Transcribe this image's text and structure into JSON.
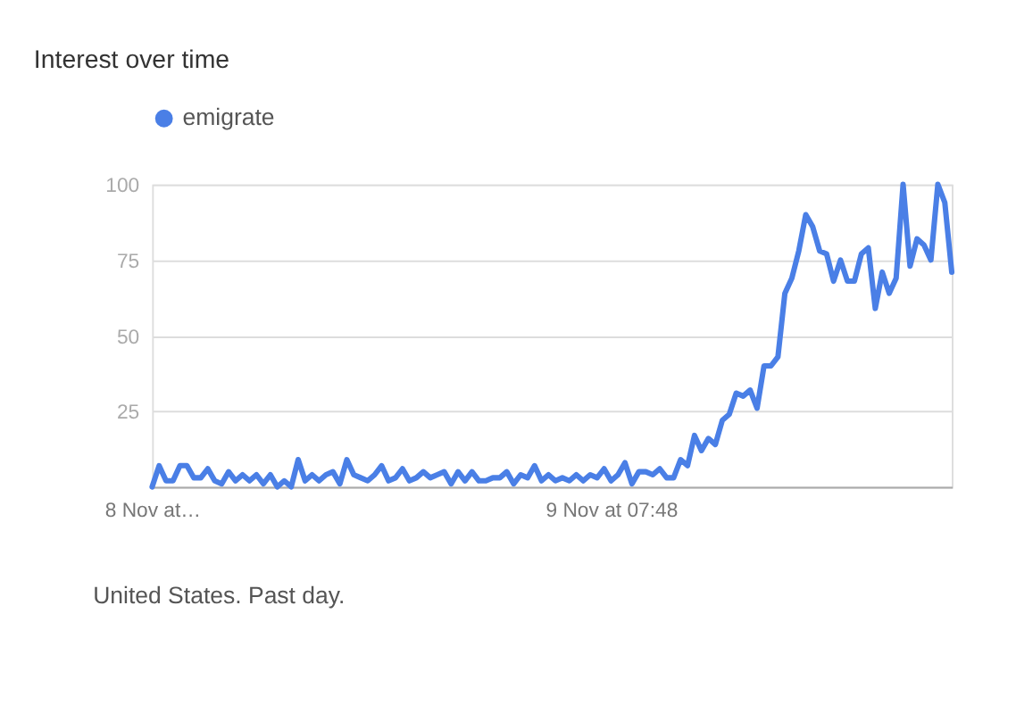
{
  "chart_data": {
    "type": "line",
    "title": "Interest over time",
    "annotations": [
      "United States. Past day."
    ],
    "categories": [
      "8 Nov at…",
      null,
      null,
      null,
      null,
      null,
      null,
      null,
      null,
      null,
      null,
      null,
      null,
      null,
      null,
      null,
      null,
      null,
      null,
      null,
      null,
      null,
      null,
      null,
      null,
      null,
      null,
      null,
      null,
      null,
      null,
      null,
      null,
      null,
      null,
      null,
      null,
      null,
      null,
      null,
      null,
      null,
      null,
      null,
      null,
      null,
      null,
      null,
      null,
      null,
      null,
      null,
      null,
      null,
      null,
      null,
      null,
      null,
      null,
      null,
      null,
      null,
      null,
      null,
      null,
      null,
      "9 Nov at 07:48",
      null,
      null,
      null,
      null,
      null,
      null,
      null,
      null,
      null,
      null,
      null,
      null,
      null,
      null,
      null,
      null,
      null,
      null,
      null,
      null,
      null,
      null,
      null,
      null,
      null,
      null,
      null,
      null,
      null,
      null,
      null,
      null,
      null,
      null,
      null,
      null,
      null,
      null,
      null,
      null,
      null,
      null,
      null,
      null,
      null,
      null,
      null,
      null,
      null
    ],
    "ylim": [
      0,
      100
    ],
    "yticks": [
      25,
      50,
      75,
      100
    ],
    "grid": "y",
    "legend": "top left",
    "marker": "none",
    "line_style": "solid",
    "series": [
      {
        "name": "emigrate",
        "color": "#4a7fe6",
        "values": [
          0,
          7,
          2,
          2,
          7,
          7,
          3,
          3,
          6,
          2,
          1,
          5,
          2,
          4,
          2,
          4,
          1,
          4,
          0,
          2,
          0,
          9,
          2,
          4,
          2,
          4,
          5,
          1,
          9,
          4,
          3,
          2,
          4,
          7,
          2,
          3,
          6,
          2,
          3,
          5,
          3,
          4,
          5,
          1,
          5,
          2,
          5,
          2,
          2,
          3,
          3,
          5,
          1,
          4,
          3,
          7,
          2,
          4,
          2,
          3,
          2,
          4,
          2,
          4,
          3,
          6,
          2,
          4,
          8,
          1,
          5,
          5,
          4,
          6,
          3,
          3,
          9,
          7,
          17,
          12,
          16,
          14,
          22,
          24,
          31,
          30,
          32,
          26,
          40,
          40,
          43,
          64,
          69,
          78,
          90,
          86,
          78,
          77,
          68,
          75,
          68,
          68,
          77,
          79,
          59,
          71,
          64,
          69,
          100,
          73,
          82,
          80,
          75,
          100,
          94,
          71
        ]
      }
    ]
  }
}
